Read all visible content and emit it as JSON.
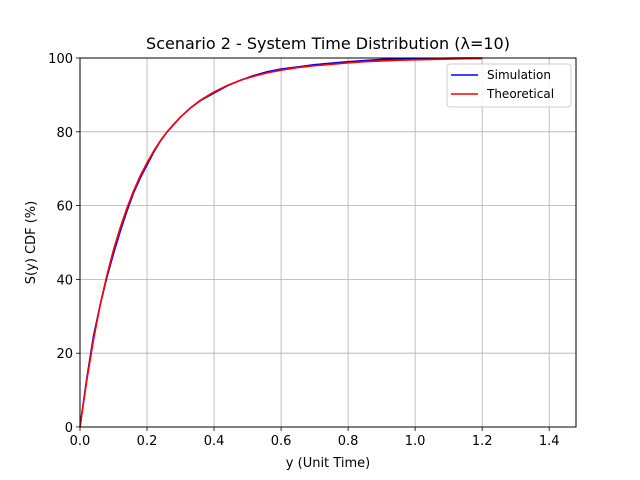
{
  "chart_data": {
    "type": "line",
    "title": "Scenario 2 - System Time Distribution (λ=10)",
    "xlabel": "y (Unit Time)",
    "ylabel": "S(y) CDF (%)",
    "xlim": [
      0,
      1.48
    ],
    "ylim": [
      0,
      100
    ],
    "xticks": [
      0.0,
      0.2,
      0.4,
      0.6,
      0.8,
      1.0,
      1.2,
      1.4
    ],
    "xtick_labels": [
      "0.0",
      "0.2",
      "0.4",
      "0.6",
      "0.8",
      "1.0",
      "1.2",
      "1.4"
    ],
    "yticks": [
      0,
      20,
      40,
      60,
      80,
      100
    ],
    "ytick_labels": [
      "0",
      "20",
      "40",
      "60",
      "80",
      "100"
    ],
    "grid": true,
    "legend_position": "top-right",
    "series": [
      {
        "name": "Simulation",
        "color": "#0000ff",
        "x": [
          0,
          0.02,
          0.04,
          0.06,
          0.08,
          0.1,
          0.12,
          0.14,
          0.16,
          0.18,
          0.2,
          0.22,
          0.24,
          0.26,
          0.28,
          0.3,
          0.33,
          0.36,
          0.4,
          0.44,
          0.48,
          0.52,
          0.56,
          0.6,
          0.65,
          0.7,
          0.75,
          0.8,
          0.85,
          0.9,
          0.95,
          1.0,
          1.05,
          1.1,
          1.15,
          1.2
        ],
        "y": [
          0,
          13,
          24.5,
          33,
          40.5,
          47,
          53,
          58.5,
          63.5,
          67.5,
          71,
          74.5,
          77.5,
          80,
          82,
          84,
          86.5,
          88.5,
          90.5,
          92.5,
          94,
          95.3,
          96.3,
          97,
          97.6,
          98.2,
          98.6,
          99,
          99.3,
          99.6,
          99.7,
          99.8,
          99.9,
          99.95,
          100,
          100
        ]
      },
      {
        "name": "Theoretical",
        "color": "#ff0000",
        "x": [
          0,
          0.02,
          0.04,
          0.06,
          0.08,
          0.1,
          0.12,
          0.14,
          0.16,
          0.18,
          0.2,
          0.22,
          0.24,
          0.26,
          0.28,
          0.3,
          0.33,
          0.36,
          0.4,
          0.44,
          0.48,
          0.52,
          0.56,
          0.6,
          0.65,
          0.7,
          0.75,
          0.8,
          0.85,
          0.9,
          0.95,
          1.0,
          1.05,
          1.1,
          1.15,
          1.2
        ],
        "y": [
          0,
          12.5,
          23.5,
          33,
          41,
          48,
          54,
          59.3,
          64,
          68.1,
          71.6,
          74.8,
          77.6,
          80,
          82.1,
          84,
          86.5,
          88.6,
          90.8,
          92.6,
          94,
          95.1,
          96,
          96.7,
          97.4,
          97.9,
          98.3,
          98.7,
          99,
          99.2,
          99.4,
          99.5,
          99.6,
          99.7,
          99.8,
          99.85
        ]
      }
    ]
  }
}
